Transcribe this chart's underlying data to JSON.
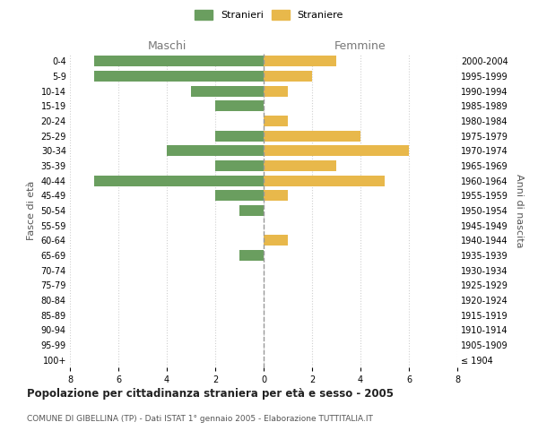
{
  "age_groups": [
    "100+",
    "95-99",
    "90-94",
    "85-89",
    "80-84",
    "75-79",
    "70-74",
    "65-69",
    "60-64",
    "55-59",
    "50-54",
    "45-49",
    "40-44",
    "35-39",
    "30-34",
    "25-29",
    "20-24",
    "15-19",
    "10-14",
    "5-9",
    "0-4"
  ],
  "birth_years": [
    "≤ 1904",
    "1905-1909",
    "1910-1914",
    "1915-1919",
    "1920-1924",
    "1925-1929",
    "1930-1934",
    "1935-1939",
    "1940-1944",
    "1945-1949",
    "1950-1954",
    "1955-1959",
    "1960-1964",
    "1965-1969",
    "1970-1974",
    "1975-1979",
    "1980-1984",
    "1985-1989",
    "1990-1994",
    "1995-1999",
    "2000-2004"
  ],
  "males": [
    0,
    0,
    0,
    0,
    0,
    0,
    0,
    1,
    0,
    0,
    1,
    2,
    7,
    2,
    4,
    2,
    0,
    2,
    3,
    7,
    7
  ],
  "females": [
    0,
    0,
    0,
    0,
    0,
    0,
    0,
    0,
    1,
    0,
    0,
    1,
    5,
    3,
    6,
    4,
    1,
    0,
    1,
    2,
    3
  ],
  "male_color": "#6a9e5f",
  "female_color": "#e8b84b",
  "title": "Popolazione per cittadinanza straniera per età e sesso - 2005",
  "subtitle": "COMUNE DI GIBELLINA (TP) - Dati ISTAT 1° gennaio 2005 - Elaborazione TUTTITALIA.IT",
  "xlabel_left": "Maschi",
  "xlabel_right": "Femmine",
  "ylabel_left": "Fasce di età",
  "ylabel_right": "Anni di nascita",
  "legend_male": "Stranieri",
  "legend_female": "Straniere",
  "xlim": 8,
  "background_color": "#ffffff",
  "grid_color": "#d0d0d0"
}
